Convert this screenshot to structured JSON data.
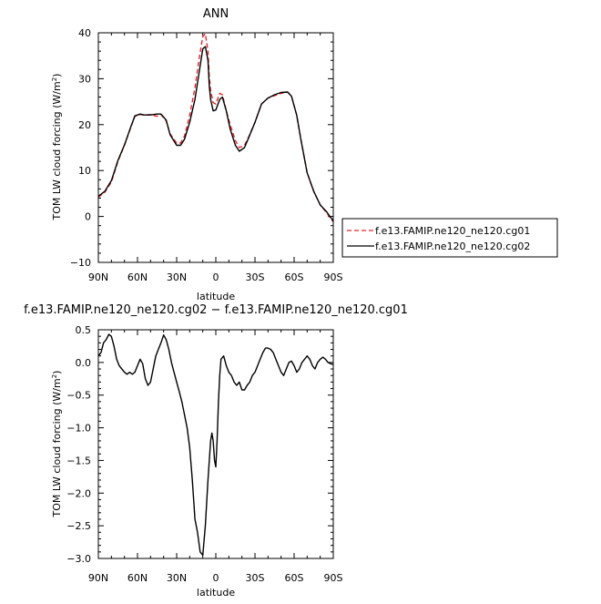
{
  "chart_data": [
    {
      "type": "line",
      "title": "ANN",
      "xlabel": "latitude",
      "ylabel": "TOM LW cloud forcing (W/m",
      "ylabel_sup": "2",
      "ylabel_end": ")",
      "xlim": [
        90,
        -90
      ],
      "ylim": [
        -10,
        40
      ],
      "xticks": [
        90,
        60,
        30,
        0,
        -30,
        -60,
        -90
      ],
      "xticklabels": [
        "90N",
        "60N",
        "30N",
        "0",
        "30S",
        "60S",
        "90S"
      ],
      "yticks": [
        -10,
        0,
        10,
        20,
        30,
        40
      ],
      "yticklabels": [
        "−10",
        "0",
        "10",
        "20",
        "30",
        "40"
      ],
      "legend_position": "right",
      "series": [
        {
          "name": "f.e13.FAMIP.ne120_ne120.cg01",
          "color": "#e8242b",
          "dash": "dashed",
          "x": [
            90,
            85,
            80,
            75,
            70,
            65,
            62,
            58,
            55,
            50,
            45,
            42,
            38,
            35,
            30,
            27,
            24,
            20,
            16,
            13,
            10,
            8,
            6,
            5,
            4,
            2,
            0,
            -3,
            -5,
            -8,
            -11,
            -15,
            -18,
            -22,
            -25,
            -30,
            -35,
            -40,
            -45,
            -50,
            -55,
            -58,
            -62,
            -65,
            -70,
            -75,
            -80,
            -85,
            -90
          ],
          "y": [
            4.2,
            5.3,
            7.5,
            12,
            15.5,
            19.5,
            21.8,
            22.2,
            22.1,
            22.2,
            21.8,
            22.2,
            20.8,
            18,
            16,
            16,
            17.5,
            22,
            28,
            34,
            39.2,
            39.8,
            36,
            30.5,
            27.5,
            24.8,
            24.5,
            26.8,
            26.5,
            23,
            20,
            16.5,
            15,
            15.5,
            17.2,
            20.5,
            24.5,
            25.8,
            26.3,
            26.8,
            27.1,
            26.2,
            22,
            17,
            9.5,
            5.5,
            2.5,
            0.8,
            -1.2
          ]
        },
        {
          "name": "f.e13.FAMIP.ne120_ne120.cg02",
          "color": "#000000",
          "dash": "solid",
          "x": [
            90,
            85,
            80,
            75,
            70,
            65,
            62,
            58,
            55,
            50,
            45,
            42,
            38,
            35,
            30,
            27,
            24,
            20,
            16,
            13,
            10,
            8,
            6,
            5,
            4,
            2,
            0,
            -3,
            -5,
            -8,
            -11,
            -15,
            -18,
            -22,
            -25,
            -30,
            -35,
            -40,
            -45,
            -50,
            -55,
            -58,
            -62,
            -65,
            -70,
            -75,
            -80,
            -85,
            -90
          ],
          "y": [
            4.4,
            5.5,
            7.8,
            12.2,
            15.6,
            19.6,
            21.9,
            22.3,
            22.1,
            22.1,
            22.3,
            22.3,
            21,
            17.8,
            15.5,
            15.5,
            16.8,
            20.5,
            25.5,
            31,
            36.5,
            37,
            34,
            28.5,
            25.5,
            23,
            23.2,
            25.5,
            26,
            23,
            19,
            15.5,
            14.2,
            15,
            17,
            20.5,
            24.5,
            25.8,
            26.5,
            27,
            27.1,
            26.2,
            22,
            17,
            9.5,
            5.5,
            2.5,
            1,
            -1
          ]
        }
      ]
    },
    {
      "type": "line",
      "title": "f.e13.FAMIP.ne120_ne120.cg02 − f.e13.FAMIP.ne120_ne120.cg01",
      "xlabel": "latitude",
      "ylabel": "TOM LW cloud forcing (W/m",
      "ylabel_sup": "2",
      "ylabel_end": ")",
      "xlim": [
        90,
        -90
      ],
      "ylim": [
        -3.0,
        0.5
      ],
      "xticks": [
        90,
        60,
        30,
        0,
        -30,
        -60,
        -90
      ],
      "xticklabels": [
        "90N",
        "60N",
        "30N",
        "0",
        "30S",
        "60S",
        "90S"
      ],
      "yticks": [
        0.5,
        0.0,
        -0.5,
        -1.0,
        -1.5,
        -2.0,
        -2.5,
        -3.0
      ],
      "yticklabels": [
        "0.5",
        "0.0",
        "−0.5",
        "−1.0",
        "−1.5",
        "−2.0",
        "−2.5",
        "−3.0"
      ],
      "series": [
        {
          "color": "#000000",
          "dash": "solid",
          "x": [
            90,
            88,
            86,
            84,
            82,
            80,
            78,
            76,
            74,
            72,
            70,
            68,
            66,
            64,
            62,
            60,
            58,
            56,
            54,
            52,
            50,
            48,
            46,
            44,
            42,
            40,
            38,
            36,
            34,
            32,
            30,
            28,
            26,
            24,
            22,
            20,
            18,
            16,
            14,
            12,
            10,
            8,
            6,
            4,
            3,
            2,
            1,
            0,
            -1,
            -2,
            -3,
            -4,
            -6,
            -8,
            -10,
            -12,
            -14,
            -16,
            -18,
            -20,
            -22,
            -24,
            -26,
            -28,
            -30,
            -32,
            -34,
            -36,
            -38,
            -40,
            -42,
            -44,
            -46,
            -48,
            -50,
            -52,
            -54,
            -56,
            -58,
            -60,
            -62,
            -64,
            -66,
            -68,
            -70,
            -72,
            -74,
            -76,
            -78,
            -80,
            -82,
            -84,
            -86,
            -88,
            -90
          ],
          "y": [
            0.1,
            0.15,
            0.3,
            0.35,
            0.43,
            0.4,
            0.25,
            0.05,
            -0.05,
            -0.1,
            -0.15,
            -0.18,
            -0.15,
            -0.18,
            -0.15,
            -0.05,
            0.05,
            -0.02,
            -0.25,
            -0.35,
            -0.3,
            -0.1,
            0.1,
            0.2,
            0.3,
            0.42,
            0.35,
            0.2,
            0.0,
            -0.15,
            -0.3,
            -0.45,
            -0.6,
            -0.8,
            -1.0,
            -1.3,
            -1.8,
            -2.4,
            -2.6,
            -2.9,
            -2.95,
            -2.5,
            -1.8,
            -1.2,
            -1.08,
            -1.2,
            -1.5,
            -1.6,
            -1.2,
            -0.6,
            -0.2,
            0.05,
            0.1,
            -0.05,
            -0.15,
            -0.2,
            -0.3,
            -0.35,
            -0.3,
            -0.42,
            -0.42,
            -0.35,
            -0.3,
            -0.2,
            -0.15,
            -0.05,
            0.05,
            0.15,
            0.22,
            0.22,
            0.2,
            0.15,
            0.05,
            -0.05,
            -0.15,
            -0.2,
            -0.1,
            0.0,
            0.02,
            -0.05,
            -0.15,
            -0.1,
            0.0,
            0.05,
            0.1,
            0.05,
            -0.05,
            -0.1,
            0.0,
            0.05,
            0.08,
            0.05,
            0.0,
            -0.02,
            -0.03
          ]
        }
      ]
    }
  ]
}
